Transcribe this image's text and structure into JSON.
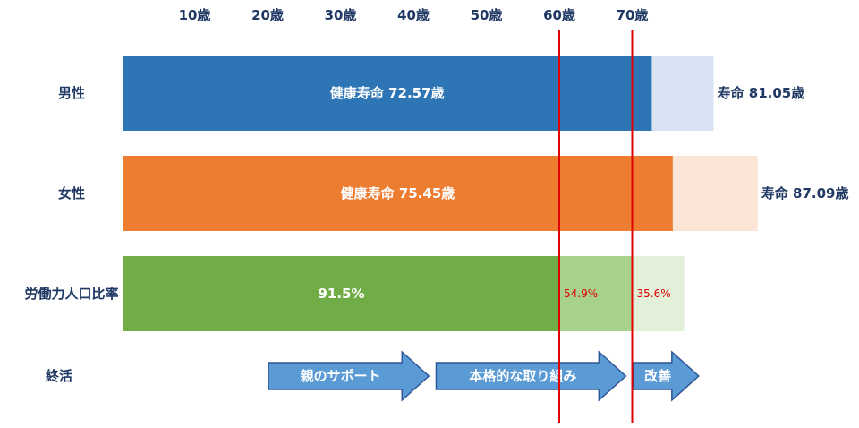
{
  "chart_data": {
    "type": "bar",
    "orientation": "horizontal",
    "x_ticks": [
      {
        "value": 10,
        "label": "10歳",
        "color": "#1f3864"
      },
      {
        "value": 20,
        "label": "20歳",
        "color": "#1f3864"
      },
      {
        "value": 30,
        "label": "30歳",
        "color": "#1f3864"
      },
      {
        "value": 40,
        "label": "40歳",
        "color": "#1f3864"
      },
      {
        "value": 50,
        "label": "50歳",
        "color": "#1f3864"
      },
      {
        "value": 60,
        "label": "60歳",
        "color": "#e00000"
      },
      {
        "value": 70,
        "label": "70歳",
        "color": "#e00000"
      }
    ],
    "reference_lines": [
      60,
      70
    ],
    "rows": [
      {
        "label": "男性",
        "segments": [
          {
            "start": 0,
            "end": 72.57,
            "color": "#2e75b6",
            "text": "健康寿命 72.57歳"
          },
          {
            "start": 72.57,
            "end": 81.05,
            "color": "#dae3f3",
            "text": ""
          }
        ],
        "end_label": "寿命 81.05歳"
      },
      {
        "label": "女性",
        "segments": [
          {
            "start": 0,
            "end": 75.45,
            "color": "#ed7d31",
            "text": "健康寿命 75.45歳"
          },
          {
            "start": 75.45,
            "end": 87.09,
            "color": "#fbe5d6",
            "text": ""
          }
        ],
        "end_label": "寿命 87.09歳"
      },
      {
        "label": "労働力人口比率",
        "segments": [
          {
            "start": 0,
            "end": 60,
            "color": "#70ad47",
            "text": "91.5%"
          },
          {
            "start": 60,
            "end": 70,
            "color": "#a9d18e",
            "text": "54.9%"
          },
          {
            "start": 70,
            "end": 77,
            "color": "#e2f0d9",
            "text": "35.6%"
          }
        ],
        "end_label": ""
      }
    ],
    "arrows_row": {
      "label": "終活",
      "arrows": [
        {
          "start": 20,
          "end": 42,
          "text": "親のサポート"
        },
        {
          "start": 43,
          "end": 69,
          "text": "本格的な取り組み"
        },
        {
          "start": 70,
          "end": 79,
          "text": "改善"
        }
      ]
    }
  }
}
